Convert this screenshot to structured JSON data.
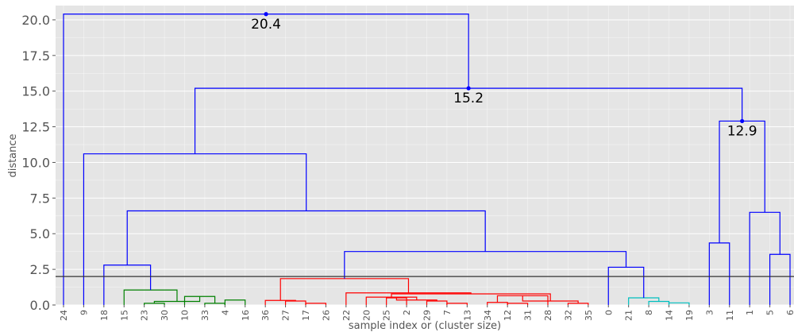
{
  "chart_data": {
    "type": "dendrogram",
    "title": "",
    "xlabel": "sample index or (cluster size)",
    "ylabel": "distance",
    "ylim": [
      0,
      21.0
    ],
    "yticks": [
      0.0,
      2.5,
      5.0,
      7.5,
      10.0,
      12.5,
      15.0,
      17.5,
      20.0
    ],
    "ytick_labels": [
      "0.0",
      "2.5",
      "5.0",
      "7.5",
      "10.0",
      "12.5",
      "15.0",
      "17.5",
      "20.0"
    ],
    "leaves": [
      "24",
      "9",
      "18",
      "15",
      "23",
      "30",
      "10",
      "33",
      "4",
      "16",
      "36",
      "27",
      "17",
      "26",
      "22",
      "20",
      "25",
      "2",
      "29",
      "7",
      "13",
      "34",
      "12",
      "31",
      "28",
      "32",
      "35",
      "0",
      "21",
      "8",
      "14",
      "19",
      "3",
      "11",
      "1",
      "5",
      "6"
    ],
    "cut_line": 2.0,
    "grid": true,
    "colors": {
      "background": "#e5e5e5",
      "grid": "#ffffff",
      "above_threshold": "#0000ff",
      "cluster_green": "#008000",
      "cluster_red": "#ff0000",
      "cluster_cyan": "#00bfbf",
      "cut_line": "#333333",
      "annotation_dot": "#0000ff"
    },
    "links": [
      {
        "left": "i11",
        "right": "i12",
        "height": 0.28,
        "color": "cluster_red"
      },
      {
        "left": "i12",
        "right": "i13",
        "height": 0.12,
        "color": "cluster_red"
      },
      {
        "left": "i10",
        "right": "L11",
        "height": 0.32,
        "color": "cluster_red"
      },
      {
        "left": "i16",
        "right": "i17",
        "height": 0.5,
        "color": "cluster_red"
      },
      {
        "left": "i18",
        "right": "i19",
        "height": 0.28,
        "color": "cluster_red"
      },
      {
        "left": "i19",
        "right": "i20",
        "height": 0.12,
        "color": "cluster_red"
      },
      {
        "left": "L16",
        "right": "L18",
        "height": 0.35,
        "color": "cluster_red"
      },
      {
        "left": "i15",
        "right": "L16b",
        "height": 0.55,
        "color": "cluster_red"
      },
      {
        "left": "i21",
        "right": "i22",
        "height": 0.18,
        "color": "cluster_red"
      },
      {
        "left": "i22",
        "right": "i23",
        "height": 0.12,
        "color": "cluster_red"
      },
      {
        "left": "L21",
        "right": "i24",
        "height": 0.65,
        "color": "cluster_red"
      },
      {
        "left": "i25",
        "right": "i26",
        "height": 0.12,
        "color": "cluster_red"
      },
      {
        "left": "L21b",
        "right": "L25",
        "height": 0.28,
        "color": "cluster_red"
      },
      {
        "left": "L15",
        "right": "L21c",
        "height": 0.78,
        "color": "cluster_red"
      },
      {
        "left": "i14",
        "right": "L15b",
        "height": 0.85,
        "color": "cluster_red"
      },
      {
        "left": "L10",
        "right": "L14",
        "height": 1.85,
        "color": "cluster_red"
      },
      {
        "left": "i7",
        "right": "i8",
        "height": 0.12,
        "color": "cluster_green"
      },
      {
        "left": "i8",
        "right": "i9",
        "height": 0.35,
        "color": "cluster_green"
      },
      {
        "left": "i6",
        "right": "L7",
        "height": 0.6,
        "color": "cluster_green"
      },
      {
        "left": "i4",
        "right": "i5",
        "height": 0.12,
        "color": "cluster_green"
      },
      {
        "left": "L4",
        "right": "L6",
        "height": 0.25,
        "color": "cluster_green"
      },
      {
        "left": "i3",
        "right": "L4b",
        "height": 1.05,
        "color": "cluster_green"
      },
      {
        "left": "i2",
        "right": "L3",
        "height": 2.8,
        "color": "above_threshold"
      },
      {
        "left": "i29",
        "right": "i30",
        "height": 0.25,
        "color": "cluster_cyan"
      },
      {
        "left": "i30",
        "right": "i31",
        "height": 0.15,
        "color": "cluster_cyan"
      },
      {
        "left": "i28",
        "right": "L29",
        "height": 0.5,
        "color": "cluster_cyan"
      },
      {
        "left": "i27",
        "right": "L28",
        "height": 2.65,
        "color": "above_threshold"
      },
      {
        "left": "L10b",
        "right": "L27",
        "height": 3.75,
        "color": "above_threshold"
      },
      {
        "left": "L2",
        "right": "L10c",
        "height": 6.6,
        "color": "above_threshold"
      },
      {
        "left": "i1",
        "right": "L2b",
        "height": 10.6,
        "color": "above_threshold"
      },
      {
        "left": "i32",
        "right": "i33",
        "height": 4.35,
        "color": "above_threshold"
      },
      {
        "left": "i35",
        "right": "i36",
        "height": 3.55,
        "color": "above_threshold"
      },
      {
        "left": "i34",
        "right": "L35",
        "height": 6.5,
        "color": "above_threshold"
      },
      {
        "left": "L32",
        "right": "L34",
        "height": 12.9,
        "color": "above_threshold"
      },
      {
        "left": "L1",
        "right": "L32b",
        "height": 15.2,
        "color": "above_threshold"
      },
      {
        "left": "i0",
        "right": "L1b",
        "height": 20.4,
        "color": "above_threshold"
      }
    ],
    "annotations": [
      {
        "text": "20.4",
        "height": 20.4
      },
      {
        "text": "15.2",
        "height": 15.2
      },
      {
        "text": "12.9",
        "height": 12.9
      }
    ]
  }
}
